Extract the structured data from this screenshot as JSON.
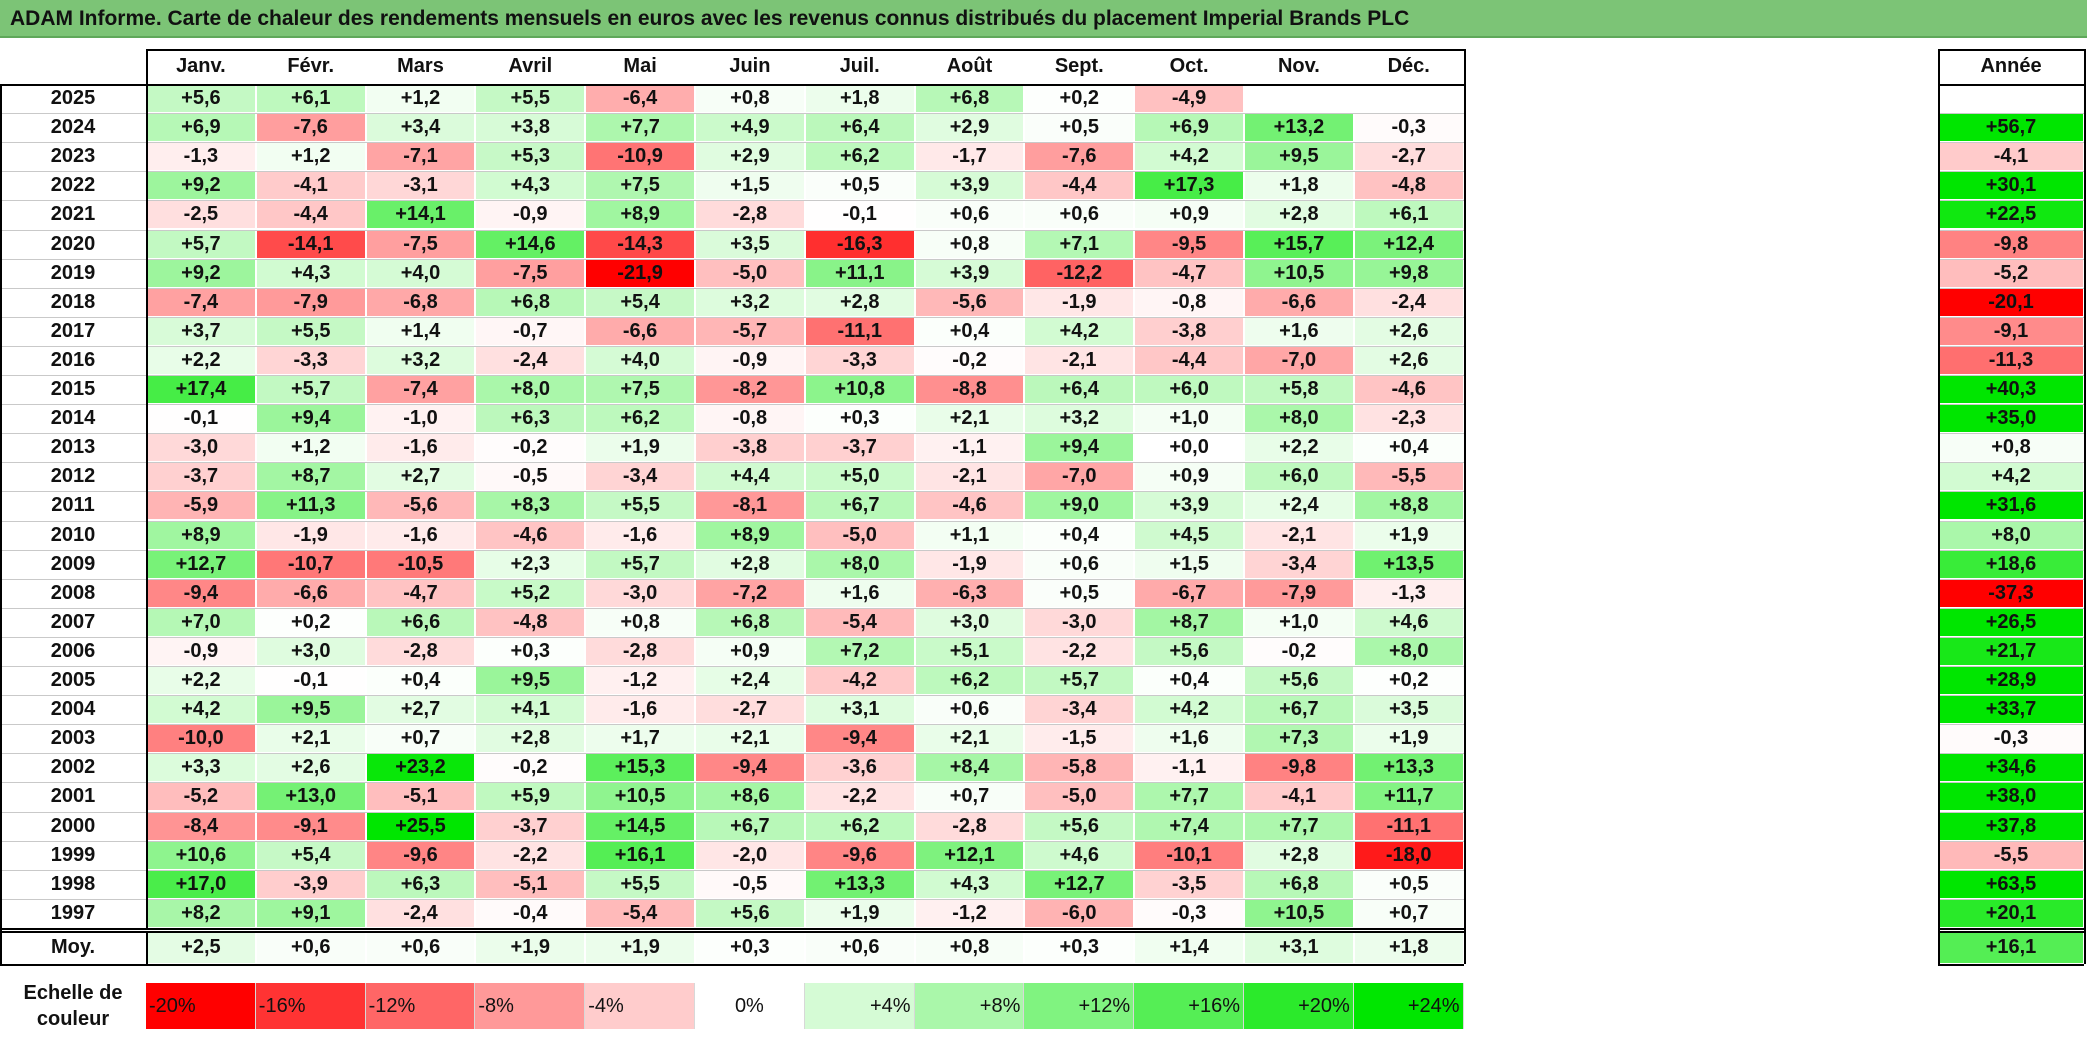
{
  "title": "ADAM Informe. Carte de chaleur des rendements mensuels en euros avec les revenus connus distribués du placement Imperial Brands PLC",
  "chart_data": {
    "type": "heatmap",
    "title": "ADAM Informe. Carte de chaleur des rendements mensuels en euros avec les revenus connus distribués du placement Imperial Brands PLC",
    "columns": [
      "Janv.",
      "Févr.",
      "Mars",
      "Avril",
      "Mai",
      "Juin",
      "Juil.",
      "Août",
      "Sept.",
      "Oct.",
      "Nov.",
      "Déc."
    ],
    "year_column_label": "Année",
    "rows": [
      {
        "year": "2025",
        "values": [
          "+5,6",
          "+6,1",
          "+1,2",
          "+5,5",
          "-6,4",
          "+0,8",
          "+1,8",
          "+6,8",
          "+0,2",
          "-4,9",
          "",
          ""
        ],
        "annual": ""
      },
      {
        "year": "2024",
        "values": [
          "+6,9",
          "-7,6",
          "+3,4",
          "+3,8",
          "+7,7",
          "+4,9",
          "+6,4",
          "+2,9",
          "+0,5",
          "+6,9",
          "+13,2",
          "-0,3"
        ],
        "annual": "+56,7"
      },
      {
        "year": "2023",
        "values": [
          "-1,3",
          "+1,2",
          "-7,1",
          "+5,3",
          "-10,9",
          "+2,9",
          "+6,2",
          "-1,7",
          "-7,6",
          "+4,2",
          "+9,5",
          "-2,7"
        ],
        "annual": "-4,1"
      },
      {
        "year": "2022",
        "values": [
          "+9,2",
          "-4,1",
          "-3,1",
          "+4,3",
          "+7,5",
          "+1,5",
          "+0,5",
          "+3,9",
          "-4,4",
          "+17,3",
          "+1,8",
          "-4,8"
        ],
        "annual": "+30,1"
      },
      {
        "year": "2021",
        "values": [
          "-2,5",
          "-4,4",
          "+14,1",
          "-0,9",
          "+8,9",
          "-2,8",
          "-0,1",
          "+0,6",
          "+0,6",
          "+0,9",
          "+2,8",
          "+6,1"
        ],
        "annual": "+22,5"
      },
      {
        "year": "2020",
        "values": [
          "+5,7",
          "-14,1",
          "-7,5",
          "+14,6",
          "-14,3",
          "+3,5",
          "-16,3",
          "+0,8",
          "+7,1",
          "-9,5",
          "+15,7",
          "+12,4"
        ],
        "annual": "-9,8"
      },
      {
        "year": "2019",
        "values": [
          "+9,2",
          "+4,3",
          "+4,0",
          "-7,5",
          "-21,9",
          "-5,0",
          "+11,1",
          "+3,9",
          "-12,2",
          "-4,7",
          "+10,5",
          "+9,8"
        ],
        "annual": "-5,2"
      },
      {
        "year": "2018",
        "values": [
          "-7,4",
          "-7,9",
          "-6,8",
          "+6,8",
          "+5,4",
          "+3,2",
          "+2,8",
          "-5,6",
          "-1,9",
          "-0,8",
          "-6,6",
          "-2,4"
        ],
        "annual": "-20,1"
      },
      {
        "year": "2017",
        "values": [
          "+3,7",
          "+5,5",
          "+1,4",
          "-0,7",
          "-6,6",
          "-5,7",
          "-11,1",
          "+0,4",
          "+4,2",
          "-3,8",
          "+1,6",
          "+2,6"
        ],
        "annual": "-9,1"
      },
      {
        "year": "2016",
        "values": [
          "+2,2",
          "-3,3",
          "+3,2",
          "-2,4",
          "+4,0",
          "-0,9",
          "-3,3",
          "-0,2",
          "-2,1",
          "-4,4",
          "-7,0",
          "+2,6"
        ],
        "annual": "-11,3"
      },
      {
        "year": "2015",
        "values": [
          "+17,4",
          "+5,7",
          "-7,4",
          "+8,0",
          "+7,5",
          "-8,2",
          "+10,8",
          "-8,8",
          "+6,4",
          "+6,0",
          "+5,8",
          "-4,6"
        ],
        "annual": "+40,3"
      },
      {
        "year": "2014",
        "values": [
          "-0,1",
          "+9,4",
          "-1,0",
          "+6,3",
          "+6,2",
          "-0,8",
          "+0,3",
          "+2,1",
          "+3,2",
          "+1,0",
          "+8,0",
          "-2,3"
        ],
        "annual": "+35,0"
      },
      {
        "year": "2013",
        "values": [
          "-3,0",
          "+1,2",
          "-1,6",
          "-0,2",
          "+1,9",
          "-3,8",
          "-3,7",
          "-1,1",
          "+9,4",
          "+0,0",
          "+2,2",
          "+0,4"
        ],
        "annual": "+0,8"
      },
      {
        "year": "2012",
        "values": [
          "-3,7",
          "+8,7",
          "+2,7",
          "-0,5",
          "-3,4",
          "+4,4",
          "+5,0",
          "-2,1",
          "-7,0",
          "+0,9",
          "+6,0",
          "-5,5"
        ],
        "annual": "+4,2"
      },
      {
        "year": "2011",
        "values": [
          "-5,9",
          "+11,3",
          "-5,6",
          "+8,3",
          "+5,5",
          "-8,1",
          "+6,7",
          "-4,6",
          "+9,0",
          "+3,9",
          "+2,4",
          "+8,8"
        ],
        "annual": "+31,6"
      },
      {
        "year": "2010",
        "values": [
          "+8,9",
          "-1,9",
          "-1,6",
          "-4,6",
          "-1,6",
          "+8,9",
          "-5,0",
          "+1,1",
          "+0,4",
          "+4,5",
          "-2,1",
          "+1,9"
        ],
        "annual": "+8,0"
      },
      {
        "year": "2009",
        "values": [
          "+12,7",
          "-10,7",
          "-10,5",
          "+2,3",
          "+5,7",
          "+2,8",
          "+8,0",
          "-1,9",
          "+0,6",
          "+1,5",
          "-3,4",
          "+13,5"
        ],
        "annual": "+18,6"
      },
      {
        "year": "2008",
        "values": [
          "-9,4",
          "-6,6",
          "-4,7",
          "+5,2",
          "-3,0",
          "-7,2",
          "+1,6",
          "-6,3",
          "+0,5",
          "-6,7",
          "-7,9",
          "-1,3"
        ],
        "annual": "-37,3"
      },
      {
        "year": "2007",
        "values": [
          "+7,0",
          "+0,2",
          "+6,6",
          "-4,8",
          "+0,8",
          "+6,8",
          "-5,4",
          "+3,0",
          "-3,0",
          "+8,7",
          "+1,0",
          "+4,6"
        ],
        "annual": "+26,5"
      },
      {
        "year": "2006",
        "values": [
          "-0,9",
          "+3,0",
          "-2,8",
          "+0,3",
          "-2,8",
          "+0,9",
          "+7,2",
          "+5,1",
          "-2,2",
          "+5,6",
          "-0,2",
          "+8,0"
        ],
        "annual": "+21,7"
      },
      {
        "year": "2005",
        "values": [
          "+2,2",
          "-0,1",
          "+0,4",
          "+9,5",
          "-1,2",
          "+2,4",
          "-4,2",
          "+6,2",
          "+5,7",
          "+0,4",
          "+5,6",
          "+0,2"
        ],
        "annual": "+28,9"
      },
      {
        "year": "2004",
        "values": [
          "+4,2",
          "+9,5",
          "+2,7",
          "+4,1",
          "-1,6",
          "-2,7",
          "+3,1",
          "+0,6",
          "-3,4",
          "+4,2",
          "+6,7",
          "+3,5"
        ],
        "annual": "+33,7"
      },
      {
        "year": "2003",
        "values": [
          "-10,0",
          "+2,1",
          "+0,7",
          "+2,8",
          "+1,7",
          "+2,1",
          "-9,4",
          "+2,1",
          "-1,5",
          "+1,6",
          "+7,3",
          "+1,9"
        ],
        "annual": "-0,3"
      },
      {
        "year": "2002",
        "values": [
          "+3,3",
          "+2,6",
          "+23,2",
          "-0,2",
          "+15,3",
          "-9,4",
          "-3,6",
          "+8,4",
          "-5,8",
          "-1,1",
          "-9,8",
          "+13,3"
        ],
        "annual": "+34,6"
      },
      {
        "year": "2001",
        "values": [
          "-5,2",
          "+13,0",
          "-5,1",
          "+5,9",
          "+10,5",
          "+8,6",
          "-2,2",
          "+0,7",
          "-5,0",
          "+7,7",
          "-4,1",
          "+11,7"
        ],
        "annual": "+38,0"
      },
      {
        "year": "2000",
        "values": [
          "-8,4",
          "-9,1",
          "+25,5",
          "-3,7",
          "+14,5",
          "+6,7",
          "+6,2",
          "-2,8",
          "+5,6",
          "+7,4",
          "+7,7",
          "-11,1"
        ],
        "annual": "+37,8"
      },
      {
        "year": "1999",
        "values": [
          "+10,6",
          "+5,4",
          "-9,6",
          "-2,2",
          "+16,1",
          "-2,0",
          "-9,6",
          "+12,1",
          "+4,6",
          "-10,1",
          "+2,8",
          "-18,0"
        ],
        "annual": "-5,5"
      },
      {
        "year": "1998",
        "values": [
          "+17,0",
          "-3,9",
          "+6,3",
          "-5,1",
          "+5,5",
          "-0,5",
          "+13,3",
          "+4,3",
          "+12,7",
          "-3,5",
          "+6,8",
          "+0,5"
        ],
        "annual": "+63,5"
      },
      {
        "year": "1997",
        "values": [
          "+8,2",
          "+9,1",
          "-2,4",
          "-0,4",
          "-5,4",
          "+5,6",
          "+1,9",
          "-1,2",
          "-6,0",
          "-0,3",
          "+10,5",
          "+0,7"
        ],
        "annual": "+20,1"
      }
    ],
    "average_row": {
      "label": "Moy.",
      "values": [
        "+2,5",
        "+0,6",
        "+0,6",
        "+1,9",
        "+1,9",
        "+0,3",
        "+0,6",
        "+0,8",
        "+0,3",
        "+1,4",
        "+3,1",
        "+1,8"
      ],
      "annual": "+16,1"
    },
    "color_scale": {
      "label": "Echelle de couleur",
      "entries": [
        {
          "label": "-20%",
          "value": -20
        },
        {
          "label": "-16%",
          "value": -16
        },
        {
          "label": "-12%",
          "value": -12
        },
        {
          "label": "-8%",
          "value": -8
        },
        {
          "label": "-4%",
          "value": -4
        },
        {
          "label": "0%",
          "value": 0
        },
        {
          "label": "+4%",
          "value": 4
        },
        {
          "label": "+8%",
          "value": 8
        },
        {
          "label": "+12%",
          "value": 12
        },
        {
          "label": "+16%",
          "value": 16
        },
        {
          "label": "+20%",
          "value": 20
        },
        {
          "label": "+24%",
          "value": 24
        }
      ]
    },
    "colors": {
      "negative_max": "#ff0000",
      "neutral": "#ffffff",
      "positive_max": "#00e600",
      "title_background": "#7cc476"
    }
  }
}
